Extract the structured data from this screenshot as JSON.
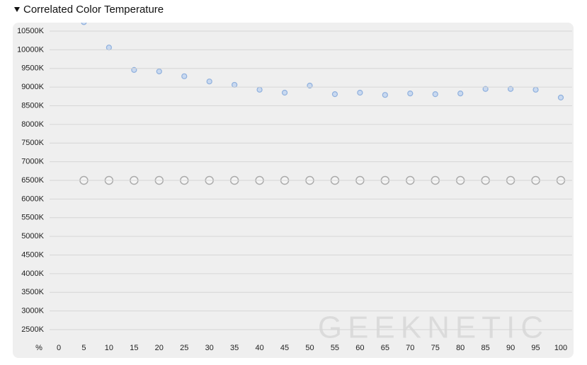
{
  "chart_data": {
    "type": "scatter",
    "title": "Correlated Color Temperature",
    "x_label": "%",
    "watermark": "GEEKNETIC",
    "xlim": [
      0,
      100
    ],
    "xticks": [
      0,
      5,
      10,
      15,
      20,
      25,
      30,
      35,
      40,
      45,
      50,
      55,
      60,
      65,
      70,
      75,
      80,
      85,
      90,
      95,
      100
    ],
    "ylim": [
      2000,
      10750
    ],
    "yticks": [
      {
        "value": 2500,
        "label": "2500K"
      },
      {
        "value": 3000,
        "label": "3000K"
      },
      {
        "value": 3500,
        "label": "3500K"
      },
      {
        "value": 4000,
        "label": "4000K"
      },
      {
        "value": 4500,
        "label": "4500K"
      },
      {
        "value": 5000,
        "label": "5000K"
      },
      {
        "value": 5500,
        "label": "5500K"
      },
      {
        "value": 6000,
        "label": "6000K"
      },
      {
        "value": 6500,
        "label": "6500K"
      },
      {
        "value": 7000,
        "label": "7000K"
      },
      {
        "value": 7500,
        "label": "7500K"
      },
      {
        "value": 8000,
        "label": "8000K"
      },
      {
        "value": 8500,
        "label": "8500K"
      },
      {
        "value": 9000,
        "label": "9000K"
      },
      {
        "value": 9500,
        "label": "9500K"
      },
      {
        "value": 10000,
        "label": "10000K"
      },
      {
        "value": 10500,
        "label": "10500K"
      }
    ],
    "grid": true,
    "x": [
      5,
      10,
      15,
      20,
      25,
      30,
      35,
      40,
      45,
      50,
      55,
      60,
      65,
      70,
      75,
      80,
      85,
      90,
      95,
      100
    ],
    "series": [
      {
        "color": "#8fb0dd",
        "values": [
          10740,
          10060,
          9460,
          9420,
          9290,
          9150,
          9060,
          8930,
          8850,
          9040,
          8810,
          8850,
          8790,
          8830,
          8810,
          8830,
          8950,
          8950,
          8930,
          8720
        ]
      },
      {
        "color": "#aaaaaa",
        "values": [
          6500,
          6500,
          6500,
          6500,
          6500,
          6500,
          6500,
          6500,
          6500,
          6500,
          6500,
          6500,
          6500,
          6500,
          6500,
          6500,
          6500,
          6500,
          6500,
          6500
        ]
      }
    ]
  }
}
